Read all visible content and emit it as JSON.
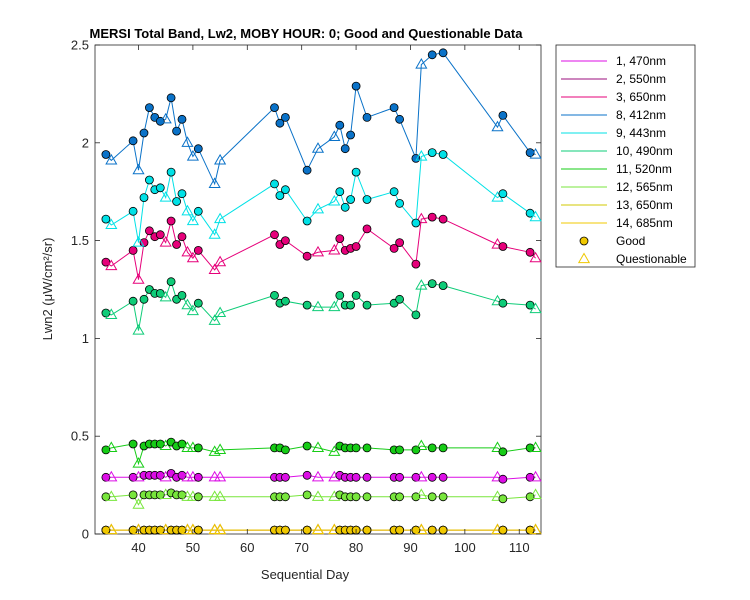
{
  "chart_data": {
    "type": "line",
    "title": "MERSI Total Band, Lw2, MOBY HOUR: 0;  Good and Questionable Data",
    "xlabel": "Sequential Day",
    "ylabel": "Lwn2 (μW/cm²/sr)",
    "xlim": [
      32,
      114
    ],
    "ylim": [
      0,
      2.5
    ],
    "xticks": [
      40,
      50,
      60,
      70,
      80,
      90,
      100,
      110
    ],
    "yticks": [
      0,
      0.5,
      1,
      1.5,
      2,
      2.5
    ],
    "ytick_labels": [
      "0",
      "0.5",
      "1",
      "1.5",
      "2",
      "2.5"
    ],
    "grid": false,
    "legend_position": "outside-right",
    "x": [
      34,
      35,
      39,
      40,
      41,
      42,
      43,
      44,
      45,
      46,
      47,
      48,
      49,
      50,
      51,
      54,
      55,
      65,
      66,
      67,
      71,
      73,
      76,
      77,
      78,
      79,
      80,
      82,
      87,
      88,
      91,
      92,
      94,
      96,
      106,
      107,
      112,
      113
    ],
    "flags": [
      "G",
      "Q",
      "G",
      "Q",
      "G",
      "G",
      "G",
      "G",
      "Q",
      "G",
      "G",
      "G",
      "Q",
      "Q",
      "G",
      "Q",
      "Q",
      "G",
      "G",
      "G",
      "G",
      "Q",
      "Q",
      "G",
      "G",
      "G",
      "G",
      "G",
      "G",
      "G",
      "G",
      "Q",
      "G",
      "G",
      "Q",
      "G",
      "G",
      "Q"
    ],
    "series": [
      {
        "name": "1, 470nm",
        "color": "#dc0ee6",
        "values": [
          0.29,
          0.29,
          0.29,
          0.29,
          0.3,
          0.3,
          0.3,
          0.3,
          0.29,
          0.31,
          0.29,
          0.3,
          0.29,
          0.29,
          0.29,
          0.29,
          0.29,
          0.29,
          0.29,
          0.29,
          0.3,
          0.29,
          0.29,
          0.3,
          0.29,
          0.29,
          0.29,
          0.29,
          0.29,
          0.29,
          0.29,
          0.29,
          0.29,
          0.29,
          0.29,
          0.28,
          0.29,
          0.29
        ]
      },
      {
        "name": "2, 550nm",
        "color": "#9b0e7d",
        "values": [
          0.02,
          0.02,
          0.02,
          0.02,
          0.02,
          0.02,
          0.02,
          0.02,
          0.02,
          0.02,
          0.02,
          0.02,
          0.02,
          0.02,
          0.02,
          0.02,
          0.02,
          0.02,
          0.02,
          0.02,
          0.02,
          0.02,
          0.02,
          0.02,
          0.02,
          0.02,
          0.02,
          0.02,
          0.02,
          0.02,
          0.02,
          0.02,
          0.02,
          0.02,
          0.02,
          0.02,
          0.02,
          0.02
        ]
      },
      {
        "name": "3, 650nm",
        "color": "#e6007a",
        "values": [
          1.39,
          1.37,
          1.45,
          1.3,
          1.49,
          1.55,
          1.52,
          1.53,
          1.49,
          1.6,
          1.48,
          1.52,
          1.44,
          1.41,
          1.45,
          1.35,
          1.39,
          1.53,
          1.48,
          1.5,
          1.42,
          1.44,
          1.45,
          1.51,
          1.45,
          1.46,
          1.47,
          1.56,
          1.46,
          1.49,
          1.38,
          1.61,
          1.62,
          1.61,
          1.48,
          1.47,
          1.44,
          1.41
        ]
      },
      {
        "name": "8, 412nm",
        "color": "#0a72c8",
        "values": [
          1.94,
          1.91,
          2.01,
          1.86,
          2.05,
          2.18,
          2.13,
          2.11,
          2.12,
          2.23,
          2.06,
          2.12,
          2.0,
          1.93,
          1.97,
          1.79,
          1.91,
          2.18,
          2.1,
          2.13,
          1.86,
          1.97,
          2.03,
          2.09,
          1.97,
          2.04,
          2.29,
          2.13,
          2.18,
          2.12,
          1.92,
          2.4,
          2.45,
          2.46,
          2.08,
          2.14,
          1.95,
          1.94
        ]
      },
      {
        "name": "9, 443nm",
        "color": "#00e1e6",
        "values": [
          1.61,
          1.58,
          1.65,
          1.49,
          1.72,
          1.81,
          1.76,
          1.77,
          1.72,
          1.85,
          1.7,
          1.74,
          1.65,
          1.6,
          1.65,
          1.53,
          1.61,
          1.79,
          1.73,
          1.76,
          1.6,
          1.66,
          1.7,
          1.75,
          1.67,
          1.71,
          1.85,
          1.71,
          1.75,
          1.69,
          1.59,
          1.93,
          1.95,
          1.94,
          1.72,
          1.74,
          1.64,
          1.62
        ]
      },
      {
        "name": "10, 490nm",
        "color": "#0ecc78",
        "values": [
          1.13,
          1.12,
          1.19,
          1.04,
          1.2,
          1.25,
          1.23,
          1.23,
          1.21,
          1.29,
          1.2,
          1.22,
          1.17,
          1.14,
          1.18,
          1.09,
          1.13,
          1.22,
          1.18,
          1.19,
          1.17,
          1.16,
          1.16,
          1.22,
          1.17,
          1.17,
          1.22,
          1.17,
          1.18,
          1.2,
          1.12,
          1.27,
          1.28,
          1.27,
          1.19,
          1.18,
          1.17,
          1.15
        ]
      },
      {
        "name": "11, 520nm",
        "color": "#16cc16",
        "values": [
          0.43,
          0.44,
          0.46,
          0.36,
          0.45,
          0.46,
          0.46,
          0.46,
          0.45,
          0.47,
          0.45,
          0.46,
          0.44,
          0.44,
          0.44,
          0.42,
          0.43,
          0.44,
          0.44,
          0.43,
          0.45,
          0.44,
          0.42,
          0.45,
          0.44,
          0.44,
          0.44,
          0.44,
          0.43,
          0.43,
          0.43,
          0.45,
          0.44,
          0.44,
          0.44,
          0.42,
          0.44,
          0.44
        ]
      },
      {
        "name": "12, 565nm",
        "color": "#78e63c",
        "values": [
          0.19,
          0.19,
          0.2,
          0.15,
          0.2,
          0.2,
          0.2,
          0.2,
          0.2,
          0.21,
          0.2,
          0.2,
          0.19,
          0.19,
          0.19,
          0.19,
          0.19,
          0.19,
          0.19,
          0.19,
          0.2,
          0.19,
          0.19,
          0.2,
          0.19,
          0.19,
          0.19,
          0.19,
          0.19,
          0.19,
          0.19,
          0.2,
          0.19,
          0.19,
          0.19,
          0.18,
          0.19,
          0.2
        ]
      },
      {
        "name": "13, 650nm",
        "color": "#d2c800",
        "values": [
          0.02,
          0.02,
          0.02,
          0.02,
          0.02,
          0.02,
          0.02,
          0.02,
          0.02,
          0.02,
          0.02,
          0.02,
          0.02,
          0.02,
          0.02,
          0.02,
          0.02,
          0.02,
          0.02,
          0.02,
          0.02,
          0.02,
          0.02,
          0.02,
          0.02,
          0.02,
          0.02,
          0.02,
          0.02,
          0.02,
          0.02,
          0.02,
          0.02,
          0.02,
          0.02,
          0.02,
          0.02,
          0.02
        ]
      },
      {
        "name": "14, 685nm",
        "color": "#f0c800",
        "values": [
          0.02,
          0.02,
          0.02,
          0.02,
          0.02,
          0.02,
          0.02,
          0.02,
          0.02,
          0.02,
          0.02,
          0.02,
          0.02,
          0.02,
          0.02,
          0.02,
          0.02,
          0.02,
          0.02,
          0.02,
          0.02,
          0.02,
          0.02,
          0.02,
          0.02,
          0.02,
          0.02,
          0.02,
          0.02,
          0.02,
          0.02,
          0.02,
          0.02,
          0.02,
          0.02,
          0.02,
          0.02,
          0.02
        ]
      }
    ],
    "marker_legend": [
      {
        "label": "Good",
        "marker": "circle"
      },
      {
        "label": "Questionable",
        "marker": "triangle"
      }
    ]
  }
}
